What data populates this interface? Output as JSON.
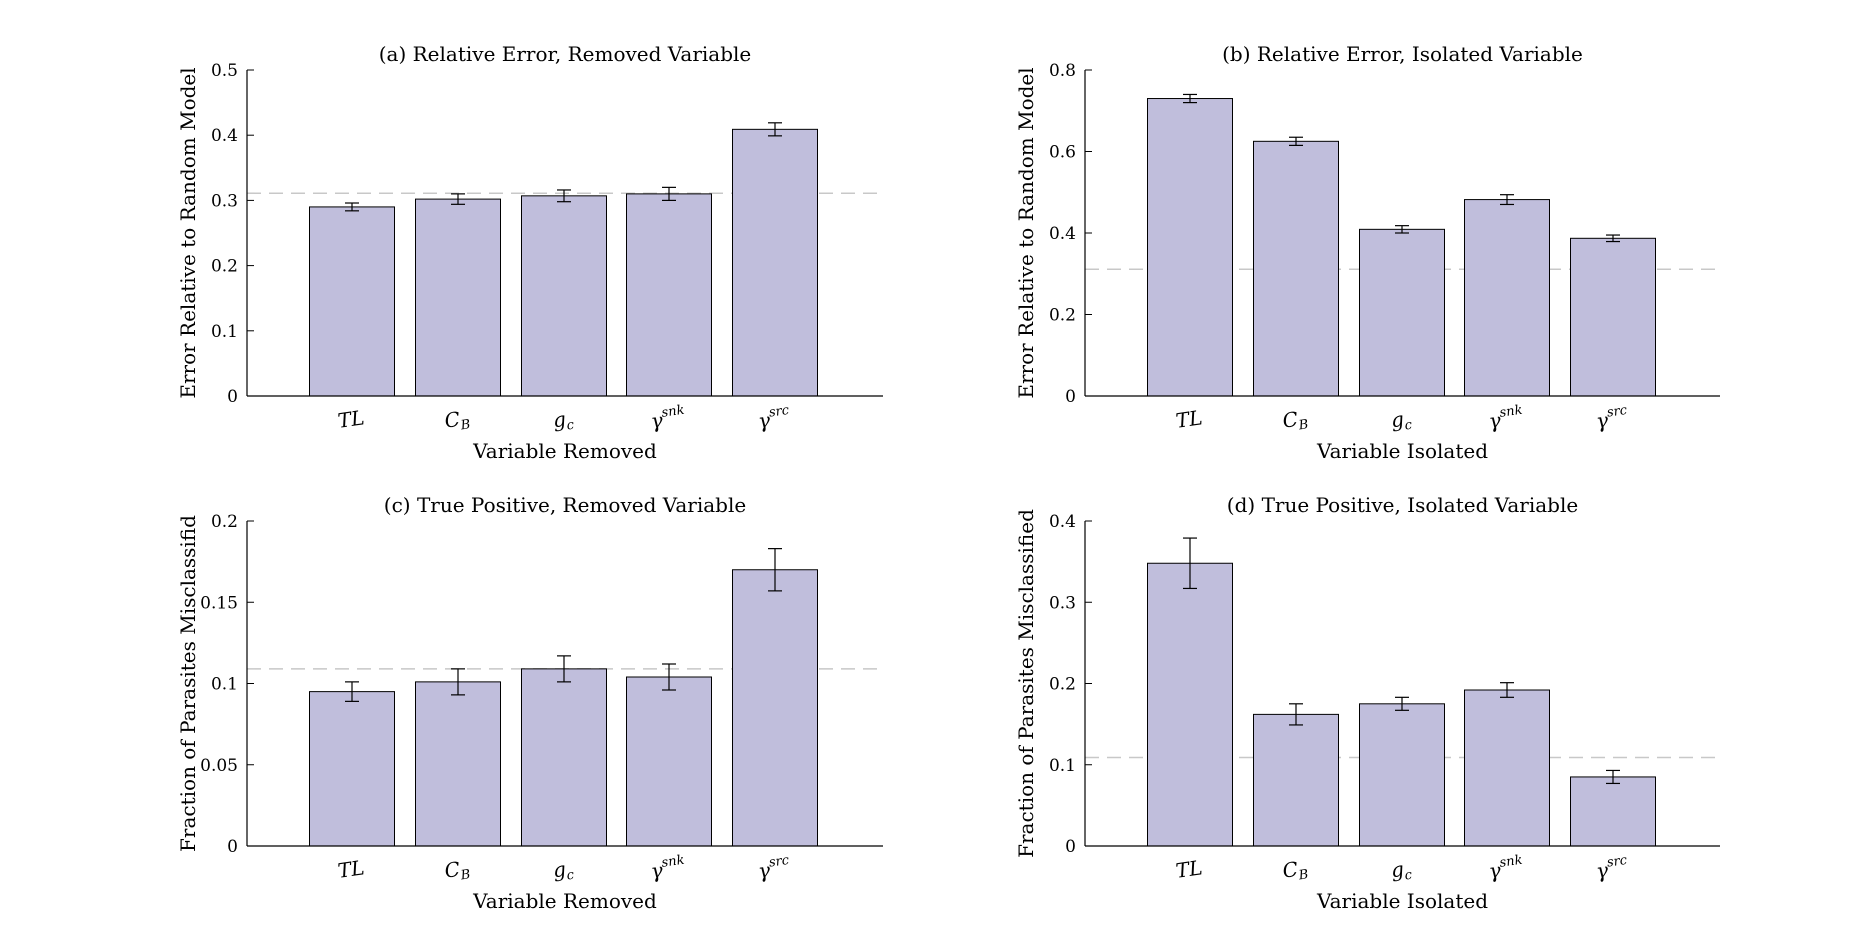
{
  "colors": {
    "bar_fill": "#c0bedc",
    "bar_stroke": "#000000",
    "reference_line": "#c8c8c8"
  },
  "chart_data": [
    {
      "type": "bar",
      "title": "(a) Relative Error, Removed Variable",
      "xlabel": "Variable Removed",
      "ylabel": "Error Relative to Random Model",
      "categories": [
        {
          "base": "TL",
          "sub": "",
          "sup": ""
        },
        {
          "base": "C",
          "sub": "B",
          "sup": ""
        },
        {
          "base": "g",
          "sub": "c",
          "sup": ""
        },
        {
          "base": "γ",
          "sub": "",
          "sup": "snk"
        },
        {
          "base": "γ",
          "sub": "",
          "sup": "src"
        }
      ],
      "values": [
        0.29,
        0.302,
        0.307,
        0.31,
        0.409
      ],
      "errors": [
        0.006,
        0.008,
        0.009,
        0.01,
        0.01
      ],
      "reference_line": 0.311,
      "ylim": [
        0,
        0.5
      ],
      "yticks": [
        0,
        0.1,
        0.2,
        0.3,
        0.4,
        0.5
      ],
      "ytick_labels": [
        "0",
        "0.1",
        "0.2",
        "0.3",
        "0.4",
        "0.5"
      ],
      "grid": false
    },
    {
      "type": "bar",
      "title": "(b) Relative Error, Isolated Variable",
      "xlabel": "Variable Isolated",
      "ylabel": "Error Relative to Random Model",
      "categories": [
        {
          "base": "TL",
          "sub": "",
          "sup": ""
        },
        {
          "base": "C",
          "sub": "B",
          "sup": ""
        },
        {
          "base": "g",
          "sub": "c",
          "sup": ""
        },
        {
          "base": "γ",
          "sub": "",
          "sup": "snk"
        },
        {
          "base": "γ",
          "sub": "",
          "sup": "src"
        }
      ],
      "values": [
        0.73,
        0.625,
        0.409,
        0.482,
        0.387
      ],
      "errors": [
        0.01,
        0.01,
        0.009,
        0.012,
        0.008
      ],
      "reference_line": 0.311,
      "ylim": [
        0,
        0.8
      ],
      "yticks": [
        0,
        0.2,
        0.4,
        0.6,
        0.8
      ],
      "ytick_labels": [
        "0",
        "0.2",
        "0.4",
        "0.6",
        "0.8"
      ],
      "grid": false
    },
    {
      "type": "bar",
      "title": "(c) True Positive, Removed Variable",
      "xlabel": "Variable Removed",
      "ylabel": "Fraction of Parasites Misclassifid",
      "categories": [
        {
          "base": "TL",
          "sub": "",
          "sup": ""
        },
        {
          "base": "C",
          "sub": "B",
          "sup": ""
        },
        {
          "base": "g",
          "sub": "c",
          "sup": ""
        },
        {
          "base": "γ",
          "sub": "",
          "sup": "snk"
        },
        {
          "base": "γ",
          "sub": "",
          "sup": "src"
        }
      ],
      "values": [
        0.095,
        0.101,
        0.109,
        0.104,
        0.17
      ],
      "errors": [
        0.006,
        0.008,
        0.008,
        0.008,
        0.013
      ],
      "reference_line": 0.109,
      "ylim": [
        0,
        0.2
      ],
      "yticks": [
        0,
        0.05,
        0.1,
        0.15,
        0.2
      ],
      "ytick_labels": [
        "0",
        "0.05",
        "0.1",
        "0.15",
        "0.2"
      ],
      "grid": false
    },
    {
      "type": "bar",
      "title": "(d) True Positive, Isolated Variable",
      "xlabel": "Variable Isolated",
      "ylabel": "Fraction of Parasites Misclassified",
      "categories": [
        {
          "base": "TL",
          "sub": "",
          "sup": ""
        },
        {
          "base": "C",
          "sub": "B",
          "sup": ""
        },
        {
          "base": "g",
          "sub": "c",
          "sup": ""
        },
        {
          "base": "γ",
          "sub": "",
          "sup": "snk"
        },
        {
          "base": "γ",
          "sub": "",
          "sup": "src"
        }
      ],
      "values": [
        0.348,
        0.162,
        0.175,
        0.192,
        0.085
      ],
      "errors": [
        0.031,
        0.013,
        0.008,
        0.009,
        0.008
      ],
      "reference_line": 0.109,
      "ylim": [
        0,
        0.4
      ],
      "yticks": [
        0,
        0.1,
        0.2,
        0.3,
        0.4
      ],
      "ytick_labels": [
        "0",
        "0.1",
        "0.2",
        "0.3",
        "0.4"
      ],
      "grid": false
    }
  ]
}
